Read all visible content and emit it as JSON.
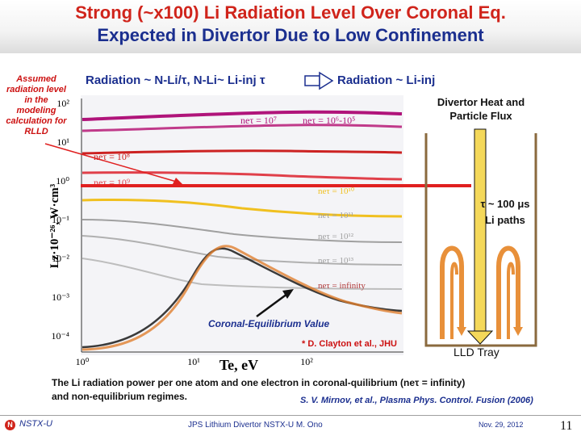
{
  "slide": {
    "title_line1": "Strong (~x100) Li Radiation Level Over Coronal Eq.",
    "title_line2": "Expected in Divertor Due to Low Confinement"
  },
  "side_note": "Assumed radiation level in the modeling calculation for RLLD",
  "radiation_left": "Radiation ~ N-Li/τ, N-Li~ Li-inj τ",
  "radiation_right": "Radiation ~ Li-inj",
  "divertor_label": "Divertor Heat and Particle Flux",
  "tau_label": "τ ~ 100 μs",
  "li_paths_label": "Li paths",
  "coronal_label": "Coronal-Equilibrium Value",
  "clayton_note": "* D. Clayton et al., JHU",
  "lld_label": "LLD Tray",
  "caption_line1": "The Li radiation power per one atom and one electron in coronal-quilibrium (neτ = infinity)",
  "caption_line2": "and non-equilibrium regimes.",
  "citation": "S. V. Mirnov, et al., Plasma Phys. Control. Fusion (2006)",
  "footer": {
    "org": "NSTX-U",
    "talk": "JPS Lithium Divertor NSTX-U M. Ono",
    "date": "Nov. 29, 2012",
    "page": "11"
  },
  "plot": {
    "y_axis_label": "Lz·10⁻²⁶, W·cm³",
    "x_axis_label": "Te, eV",
    "y_ticks": [
      "10²",
      "10¹",
      "10⁰",
      "10⁻¹",
      "10⁻²",
      "10⁻³",
      "10⁻⁴"
    ],
    "x_ticks": [
      "10⁰",
      "10¹",
      "10²"
    ],
    "curve_labels": [
      {
        "text": "neτ = 10⁷",
        "color": "#b0147a"
      },
      {
        "text": "neτ = 10⁶-10⁵",
        "color": "#b0147a"
      },
      {
        "text": "neτ = 10⁸",
        "color": "#cc2222"
      },
      {
        "text": "neτ = 10⁹",
        "color": "#e0404a"
      },
      {
        "text": "neτ = 10¹⁰",
        "color": "#f0c020"
      },
      {
        "text": "neτ = 10¹¹",
        "color": "#a0a0a0"
      },
      {
        "text": "neτ = 10¹²",
        "color": "#a0a0a0"
      },
      {
        "text": "neτ = 10¹³",
        "color": "#a0a0a0"
      },
      {
        "text": "neτ = infinity",
        "color": "#b03a3a"
      }
    ]
  },
  "colors": {
    "title_red": "#d0241b",
    "title_blue": "#1b2f8f",
    "radiation_line": "#e02020",
    "divertor_arrow": "#f4d85a",
    "li_paths": "#e8903a",
    "tray": "#8a6a3e"
  }
}
